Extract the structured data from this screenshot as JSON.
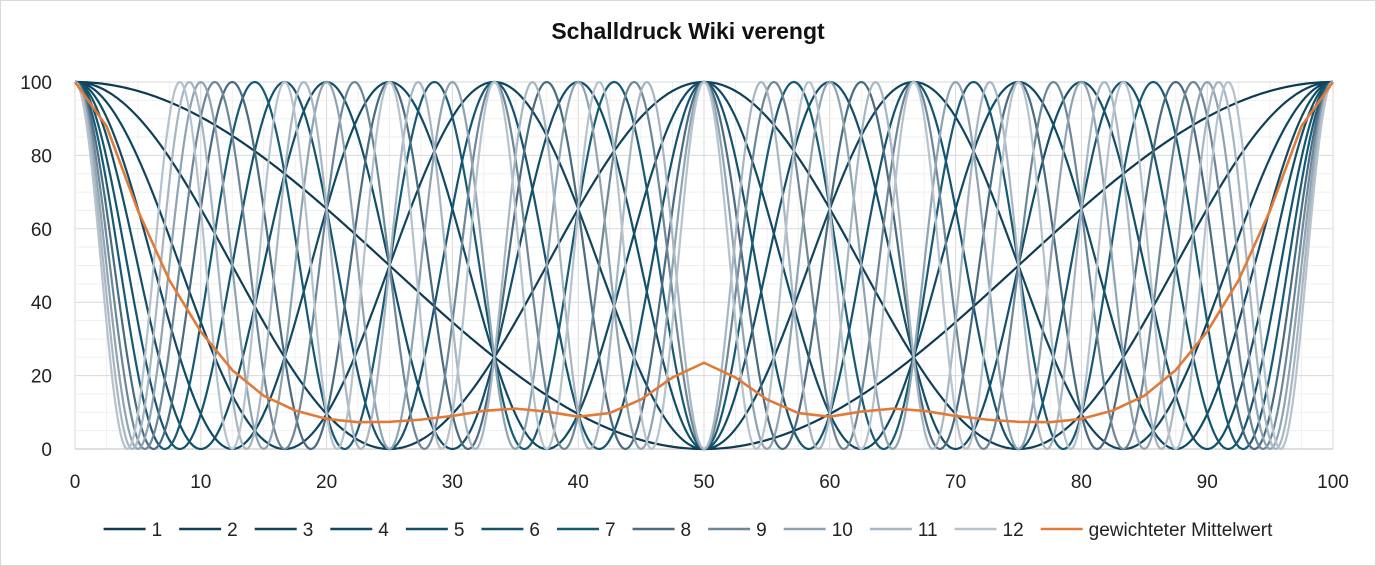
{
  "chart_data": {
    "type": "line",
    "title": "Schalldruck Wiki verengt",
    "xlabel": "",
    "ylabel": "",
    "xlim": [
      0,
      100
    ],
    "ylim": [
      0,
      100
    ],
    "x_ticks": [
      "0",
      "10",
      "20",
      "30",
      "40",
      "50",
      "60",
      "70",
      "80",
      "90",
      "100"
    ],
    "y_ticks": [
      "0",
      "20",
      "40",
      "60",
      "80",
      "100"
    ],
    "grid": true,
    "legend_position": "bottom",
    "x": [
      0,
      2.5,
      5,
      7.5,
      10,
      12.5,
      15,
      17.5,
      20,
      22.5,
      25,
      27.5,
      30,
      32.5,
      35,
      37.5,
      40,
      42.5,
      45,
      47.5,
      50,
      52.5,
      55,
      57.5,
      60,
      62.5,
      65,
      67.5,
      70,
      72.5,
      75,
      77.5,
      80,
      82.5,
      85,
      87.5,
      90,
      92.5,
      95,
      97.5,
      100
    ],
    "series": [
      {
        "name": "1",
        "color": "#0d3b52",
        "mode": 1,
        "values": [
          100,
          98.5,
          94.3,
          87.5,
          78.3,
          67.1,
          55.9,
          44.9,
          34.5,
          25.0,
          17.1,
          10.3,
          5.5,
          2.2,
          0.3,
          0.0,
          0.8,
          2.7,
          5.3,
          8.6,
          12.0,
          8.6,
          5.3,
          2.7,
          0.8,
          0.0,
          0.3,
          2.2,
          5.5,
          10.3,
          17.1,
          25.0,
          34.5,
          44.9,
          55.9,
          67.1,
          78.3,
          87.5,
          94.3,
          98.5,
          100
        ]
      },
      {
        "name": "2",
        "color": "#0e4058",
        "mode": 2,
        "values": [
          100,
          94.3,
          78.3,
          55.9,
          34.5,
          17.1,
          5.5,
          0.3,
          0.8,
          5.3,
          12.0,
          21.1,
          33.5,
          48.0,
          62.6,
          75.8,
          87.2,
          95.1,
          99.0,
          100.0,
          100,
          100.0,
          99.0,
          95.1,
          87.2,
          75.8,
          62.6,
          48.0,
          33.5,
          21.1,
          12.0,
          5.3,
          0.8,
          0.3,
          5.5,
          17.1,
          34.5,
          55.9,
          78.3,
          94.3,
          100
        ]
      },
      {
        "name": "3",
        "color": "#0f455e",
        "mode": 3,
        "values": [
          100,
          87.5,
          55.9,
          25.0,
          5.5,
          0.0,
          5.3,
          21.0,
          48.0,
          75.8,
          95.1,
          100.0,
          95.1,
          75.8,
          48.0,
          21.0,
          5.3,
          0.0,
          5.5,
          25.0,
          55.9,
          25.0,
          5.5,
          0.0,
          5.3,
          21.0,
          48.0,
          75.8,
          95.1,
          100.0,
          95.1,
          75.8,
          48.0,
          21.0,
          5.3,
          0.0,
          5.5,
          25.0,
          55.9,
          87.5,
          100
        ]
      },
      {
        "name": "4",
        "color": "#104a64",
        "mode": 4,
        "values": [
          100,
          78.3,
          34.5,
          5.5,
          0.8,
          12.0,
          33.5,
          62.6,
          87.2,
          99.0,
          100.0,
          87.2,
          62.6,
          33.5,
          12.0,
          0.8,
          0.8,
          12.0,
          33.5,
          62.6,
          87.2,
          62.6,
          33.5,
          12.0,
          0.8,
          0.8,
          12.0,
          33.5,
          62.6,
          87.2,
          100.0,
          99.0,
          87.2,
          62.6,
          33.5,
          12.0,
          0.8,
          5.5,
          34.5,
          78.3,
          100
        ]
      },
      {
        "name": "5",
        "color": "#124f69",
        "mode": 5,
        "values": [
          100,
          67.1,
          17.1,
          0.0,
          12.0,
          48.0,
          87.2,
          100.0,
          87.2,
          48.0,
          12.0,
          0.0,
          12.0,
          48.0,
          87.2,
          100.0,
          87.2,
          48.0,
          12.0,
          0.0,
          12.0,
          0.0,
          12.0,
          48.0,
          87.2,
          100.0,
          87.2,
          48.0,
          12.0,
          0.0,
          12.0,
          48.0,
          87.2,
          100.0,
          87.2,
          48.0,
          12.0,
          0.0,
          17.1,
          67.1,
          100
        ]
      },
      {
        "name": "6",
        "color": "#14546f",
        "mode": 6,
        "values": [
          100,
          55.9,
          5.5,
          5.3,
          33.5,
          75.8,
          100.0,
          87.2,
          48.0,
          12.0,
          0.0,
          12.0,
          48.0,
          87.2,
          100.0,
          75.8,
          33.5,
          5.3,
          5.5,
          55.9,
          100.0,
          55.9,
          5.5,
          5.3,
          33.5,
          75.8,
          100.0,
          87.2,
          48.0,
          12.0,
          0.0,
          12.0,
          48.0,
          87.2,
          100.0,
          75.8,
          33.5,
          5.3,
          5.5,
          55.9,
          100
        ]
      },
      {
        "name": "7",
        "color": "#175a75",
        "mode": 7,
        "values": [
          100,
          44.9,
          0.3,
          21.1,
          75.8,
          100.0,
          62.6,
          12.0,
          5.3,
          48.0,
          95.1,
          87.2,
          33.5,
          0.8,
          33.5,
          87.2,
          95.1,
          48.0,
          5.3,
          12.0,
          12.0,
          12.0,
          5.3,
          48.0,
          95.1,
          87.2,
          33.5,
          0.8,
          33.5,
          87.2,
          95.1,
          48.0,
          5.3,
          12.0,
          62.6,
          100.0,
          75.8,
          21.1,
          0.3,
          44.9,
          100
        ]
      },
      {
        "name": "8",
        "color": "#4a6b80",
        "mode": 8,
        "values": [
          100,
          34.5,
          0.8,
          48.0,
          99.0,
          62.6,
          5.3,
          12.0,
          75.8,
          95.1,
          33.5,
          0.0,
          48.0,
          100.0,
          62.6,
          5.3,
          12.0,
          75.8,
          95.1,
          33.5,
          0.0,
          33.5,
          95.1,
          75.8,
          12.0,
          5.3,
          62.6,
          100.0,
          48.0,
          0.0,
          33.5,
          95.1,
          75.8,
          12.0,
          5.3,
          62.6,
          99.0,
          48.0,
          0.8,
          34.5,
          100
        ]
      },
      {
        "name": "9",
        "color": "#6d8799",
        "mode": 9,
        "values": [
          100,
          25.0,
          5.3,
          75.8,
          87.2,
          12.0,
          12.0,
          87.2,
          75.8,
          5.3,
          25.0,
          95.1,
          62.6,
          0.8,
          33.5,
          100.0,
          48.0,
          0.0,
          48.0,
          100.0,
          33.5,
          100.0,
          48.0,
          0.0,
          48.0,
          100.0,
          33.5,
          0.8,
          62.6,
          95.1,
          25.0,
          5.3,
          75.8,
          87.2,
          12.0,
          12.0,
          87.2,
          75.8,
          5.3,
          25.0,
          100
        ]
      },
      {
        "name": "10",
        "color": "#8fa3b1",
        "mode": 10,
        "values": [
          100,
          17.1,
          12.0,
          95.1,
          48.0,
          0.0,
          75.8,
          87.2,
          5.3,
          33.5,
          100.0,
          33.5,
          5.3,
          87.2,
          75.8,
          0.0,
          48.0,
          95.1,
          12.0,
          17.1,
          100.0,
          17.1,
          12.0,
          95.1,
          48.0,
          0.0,
          75.8,
          87.2,
          5.3,
          33.5,
          100.0,
          33.5,
          5.3,
          87.2,
          75.8,
          0.0,
          48.0,
          95.1,
          12.0,
          17.1,
          100
        ]
      },
      {
        "name": "11",
        "color": "#a7b6c2",
        "mode": 11,
        "values": [
          100,
          10.3,
          21.1,
          100.0,
          21.1,
          12.0,
          95.1,
          33.5,
          5.3,
          87.2,
          48.0,
          0.8,
          75.8,
          62.6,
          0.0,
          62.6,
          75.8,
          0.8,
          48.0,
          87.2,
          12.0,
          87.2,
          48.0,
          0.8,
          75.8,
          62.6,
          0.0,
          62.6,
          75.8,
          0.8,
          48.0,
          87.2,
          5.3,
          33.5,
          95.1,
          12.0,
          21.1,
          100.0,
          21.1,
          10.3,
          100
        ]
      },
      {
        "name": "12",
        "color": "#b6c2cc",
        "mode": 12,
        "values": [
          100,
          5.5,
          33.5,
          87.2,
          5.3,
          62.6,
          48.0,
          12.0,
          100.0,
          12.0,
          48.0,
          62.6,
          5.3,
          87.2,
          33.5,
          5.5,
          95.1,
          21.1,
          21.1,
          95.1,
          5.5,
          95.1,
          21.1,
          21.1,
          95.1,
          5.5,
          33.5,
          87.2,
          5.3,
          62.6,
          48.0,
          12.0,
          100.0,
          12.0,
          48.0,
          62.6,
          5.3,
          87.2,
          33.5,
          5.5,
          100
        ]
      },
      {
        "name": "gewichteter Mittelwert",
        "color": "#e07b39",
        "values": [
          100,
          88.0,
          65.0,
          46.0,
          32.0,
          21.5,
          14.5,
          10.5,
          8.2,
          7.3,
          7.4,
          8.0,
          9.0,
          10.4,
          11.0,
          10.2,
          8.8,
          9.8,
          13.5,
          19.5,
          23.5,
          19.5,
          13.5,
          9.8,
          8.8,
          10.2,
          11.0,
          10.4,
          9.0,
          8.0,
          7.4,
          7.3,
          8.2,
          10.5,
          14.5,
          21.5,
          32.0,
          46.0,
          65.0,
          88.0,
          100
        ]
      }
    ]
  }
}
